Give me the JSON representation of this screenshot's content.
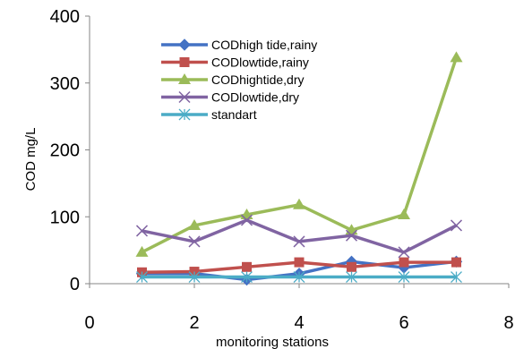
{
  "chart_data": {
    "type": "line",
    "xlabel": "monitoring stations",
    "ylabel": "COD mg/L",
    "xlim": [
      0,
      8
    ],
    "ylim": [
      0,
      400
    ],
    "xticks": [
      "0",
      "2",
      "4",
      "6",
      "8"
    ],
    "yticks": [
      "0",
      "100",
      "200",
      "300",
      "400"
    ],
    "grid": false,
    "legend_position": "upper-left inside plot",
    "x": [
      1,
      2,
      3,
      4,
      5,
      6,
      7
    ],
    "series": [
      {
        "name": "CODhigh tide,rainy",
        "color": "#4472C4",
        "marker": "diamond",
        "values": [
          15,
          15,
          6,
          15,
          33,
          24,
          33
        ]
      },
      {
        "name": "CODlowtide,rainy",
        "color": "#C0504D",
        "marker": "square",
        "values": [
          17,
          18,
          25,
          32,
          25,
          32,
          32
        ]
      },
      {
        "name": "CODhightide,dry",
        "color": "#9BBB59",
        "marker": "triangle",
        "values": [
          47,
          87,
          103,
          118,
          80,
          103,
          338
        ]
      },
      {
        "name": "CODlowtide,dry",
        "color": "#8064A2",
        "marker": "x",
        "values": [
          79,
          63,
          95,
          63,
          72,
          47,
          87
        ]
      },
      {
        "name": "standart",
        "color": "#4BACC6",
        "marker": "star",
        "values": [
          10,
          10,
          10,
          10,
          10,
          10,
          10
        ]
      }
    ]
  }
}
